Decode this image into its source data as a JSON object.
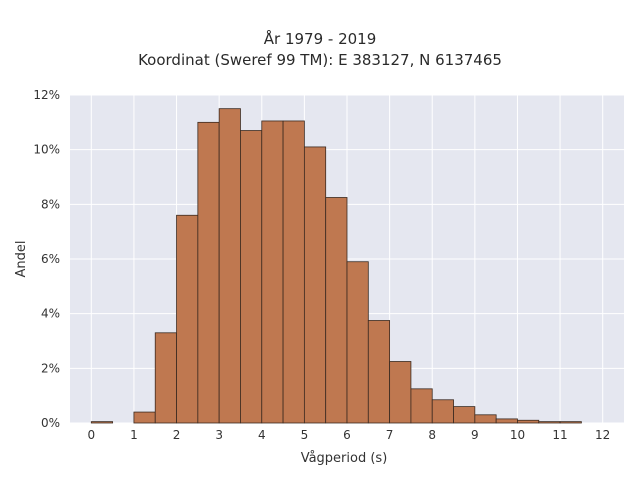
{
  "chart_data": {
    "type": "bar",
    "title": "År 1979 - 2019",
    "subtitle": "Koordinat (Sweref 99 TM): E 383127, N 6137465",
    "xlabel": "Vågperiod (s)",
    "ylabel": "Andel",
    "xlim": [
      -0.5,
      12.5
    ],
    "ylim": [
      0,
      12
    ],
    "xticks": [
      0,
      1,
      2,
      3,
      4,
      5,
      6,
      7,
      8,
      9,
      10,
      11,
      12
    ],
    "yticks": [
      0,
      2,
      4,
      6,
      8,
      10,
      12
    ],
    "ytick_labels": [
      "0%",
      "2%",
      "4%",
      "6%",
      "8%",
      "10%",
      "12%"
    ],
    "bin_width": 0.5,
    "bins": [
      {
        "start": 0.0,
        "value": 0.05
      },
      {
        "start": 0.5,
        "value": 0.0
      },
      {
        "start": 1.0,
        "value": 0.4
      },
      {
        "start": 1.5,
        "value": 3.3
      },
      {
        "start": 2.0,
        "value": 7.6
      },
      {
        "start": 2.5,
        "value": 11.0
      },
      {
        "start": 3.0,
        "value": 11.5
      },
      {
        "start": 3.5,
        "value": 10.7
      },
      {
        "start": 4.0,
        "value": 11.05
      },
      {
        "start": 4.5,
        "value": 11.05
      },
      {
        "start": 5.0,
        "value": 10.1
      },
      {
        "start": 5.5,
        "value": 8.25
      },
      {
        "start": 6.0,
        "value": 5.9
      },
      {
        "start": 6.5,
        "value": 3.75
      },
      {
        "start": 7.0,
        "value": 2.25
      },
      {
        "start": 7.5,
        "value": 1.25
      },
      {
        "start": 8.0,
        "value": 0.85
      },
      {
        "start": 8.5,
        "value": 0.6
      },
      {
        "start": 9.0,
        "value": 0.3
      },
      {
        "start": 9.5,
        "value": 0.15
      },
      {
        "start": 10.0,
        "value": 0.1
      },
      {
        "start": 10.5,
        "value": 0.05
      },
      {
        "start": 11.0,
        "value": 0.05
      }
    ],
    "grid": true,
    "colors": {
      "bar_fill": "#bf7850",
      "bar_stroke": "#3b2a20",
      "plot_bg": "#e5e7f0",
      "grid": "#ffffff"
    }
  }
}
